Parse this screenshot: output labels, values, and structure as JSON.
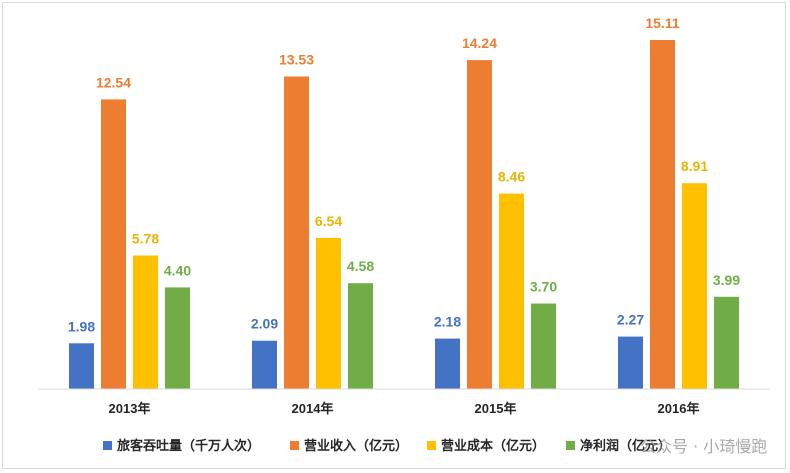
{
  "chart_data": {
    "type": "bar",
    "categories": [
      "2013年",
      "2014年",
      "2015年",
      "2016年"
    ],
    "series": [
      {
        "name": "旅客吞吐量（千万人次）",
        "color": "#4472c4",
        "values": [
          1.98,
          2.09,
          2.18,
          2.27
        ],
        "labels": [
          "1.98",
          "2.09",
          "2.18",
          "2.27"
        ]
      },
      {
        "name": "营业收入（亿元）",
        "color": "#ed7d31",
        "values": [
          12.54,
          13.53,
          14.24,
          15.11
        ],
        "labels": [
          "12.54",
          "13.53",
          "14.24",
          "15.11"
        ]
      },
      {
        "name": "营业成本（亿元）",
        "color": "#ffc000",
        "values": [
          5.78,
          6.54,
          8.46,
          8.91
        ],
        "labels": [
          "5.78",
          "6.54",
          "8.46",
          "8.91"
        ]
      },
      {
        "name": "净利润（亿元）",
        "color": "#70ad47",
        "values": [
          4.4,
          4.58,
          3.7,
          3.99
        ],
        "labels": [
          "4.40",
          "4.58",
          "3.70",
          "3.99"
        ]
      }
    ],
    "label_colors": [
      "#4472c4",
      "#ed7d31",
      "#e8b600",
      "#70ad47"
    ],
    "ylim": [
      0,
      15.11
    ],
    "grid": false,
    "legend_position": "bottom"
  },
  "watermark": "公众号 · 小琦慢跑"
}
